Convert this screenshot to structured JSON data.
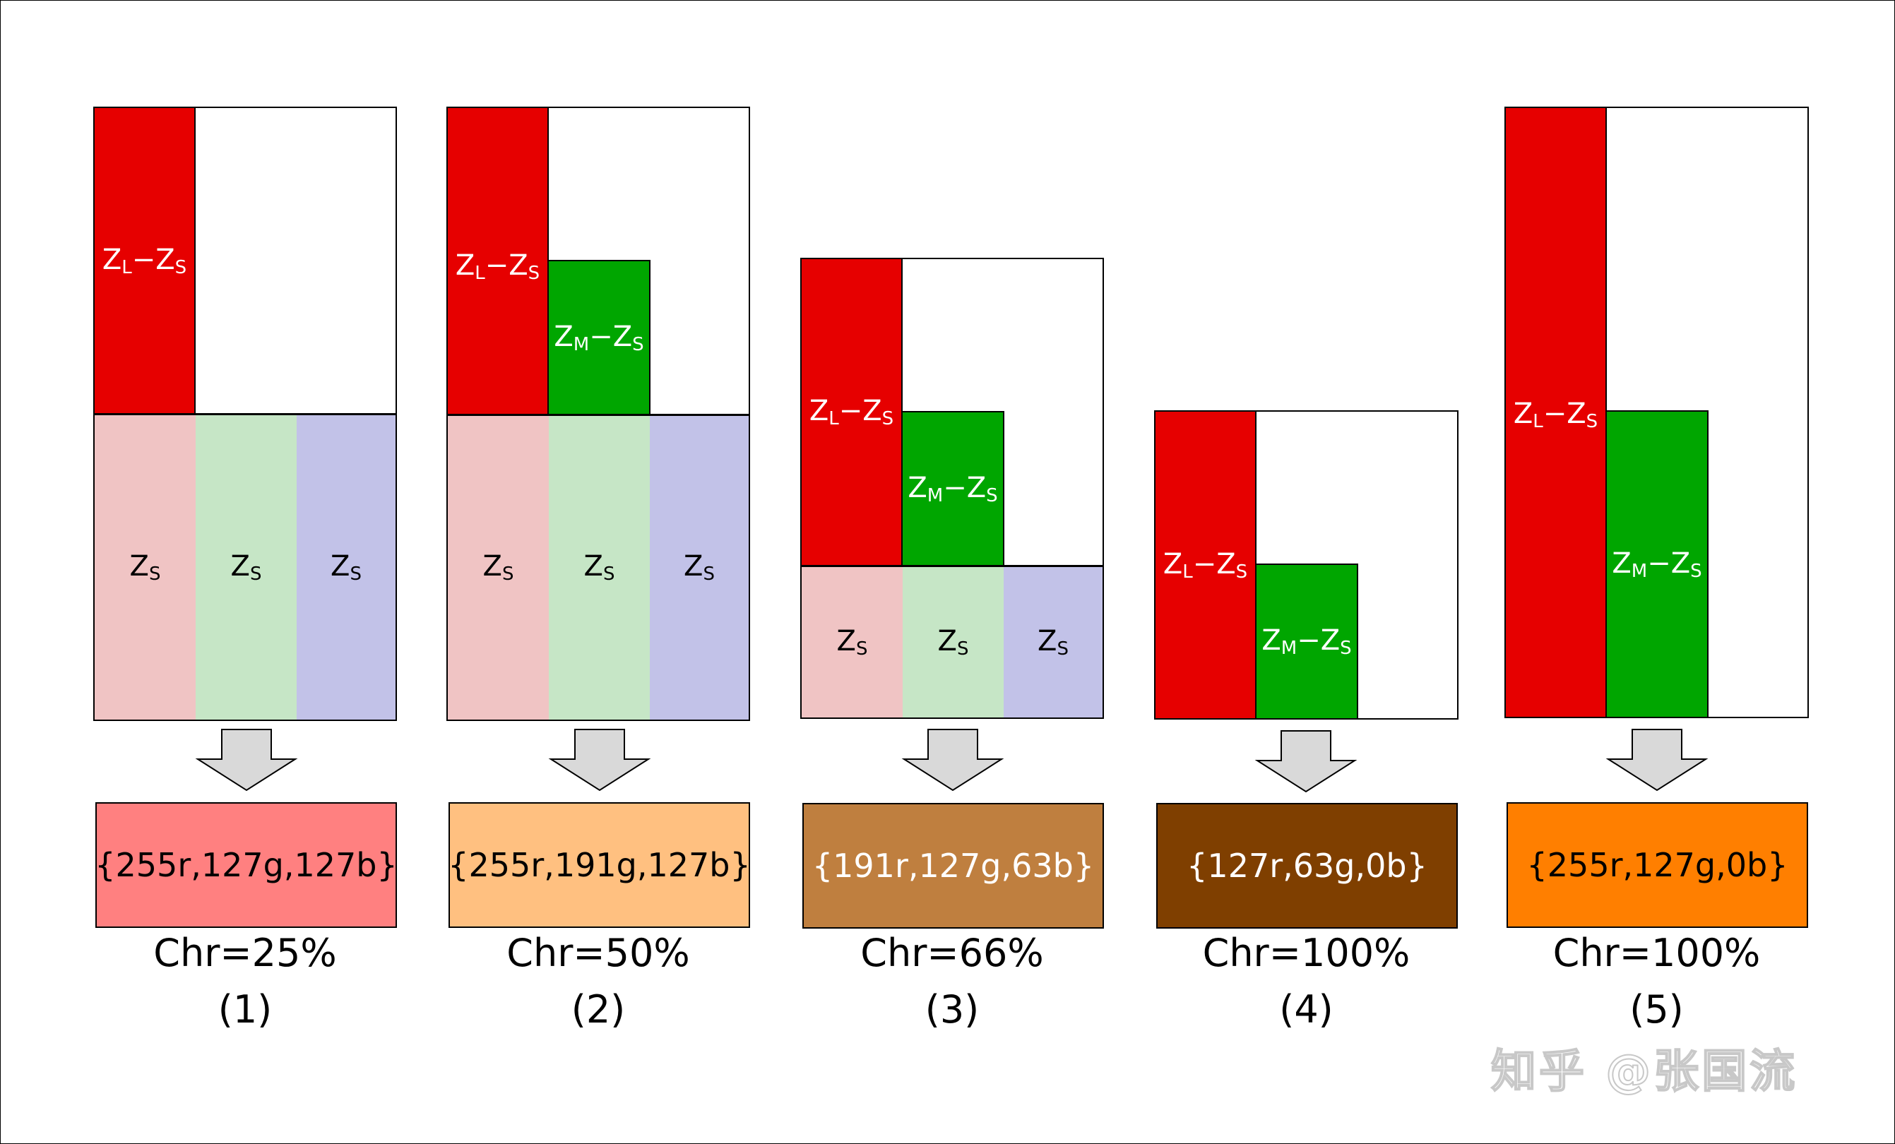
{
  "labels": {
    "z_base": "Z",
    "sub_l": "L",
    "sub_m": "M",
    "sub_s": "S",
    "minus": "−"
  },
  "panels": [
    {
      "rgb": "{255r,127g,127b}",
      "fill": "#ff8080",
      "text_color": "#000000",
      "chroma": "Chr=25%",
      "index": "(1)"
    },
    {
      "rgb": "{255r,191g,127b}",
      "fill": "#ffc080",
      "text_color": "#000000",
      "chroma": "Chr=50%",
      "index": "(2)"
    },
    {
      "rgb": "{191r,127g,63b}",
      "fill": "#bf7f3f",
      "text_color": "#ffffff",
      "chroma": "Chr=66%",
      "index": "(3)"
    },
    {
      "rgb": "{127r,63g,0b}",
      "fill": "#7f3f00",
      "text_color": "#ffffff",
      "chroma": "Chr=100%",
      "index": "(4)"
    },
    {
      "rgb": "{255r,127g,0b}",
      "fill": "#ff7f00",
      "text_color": "#000000",
      "chroma": "Chr=100%",
      "index": "(5)"
    }
  ],
  "watermark": "知乎 @张国流",
  "colors": {
    "red_bar": "#e60000",
    "green_bar": "#00a600",
    "pink_cell": "#f0c4c4",
    "mint_cell": "#c6e6c6",
    "lavender_cell": "#c2c2e8",
    "arrow_fill": "#d9d9d9"
  }
}
